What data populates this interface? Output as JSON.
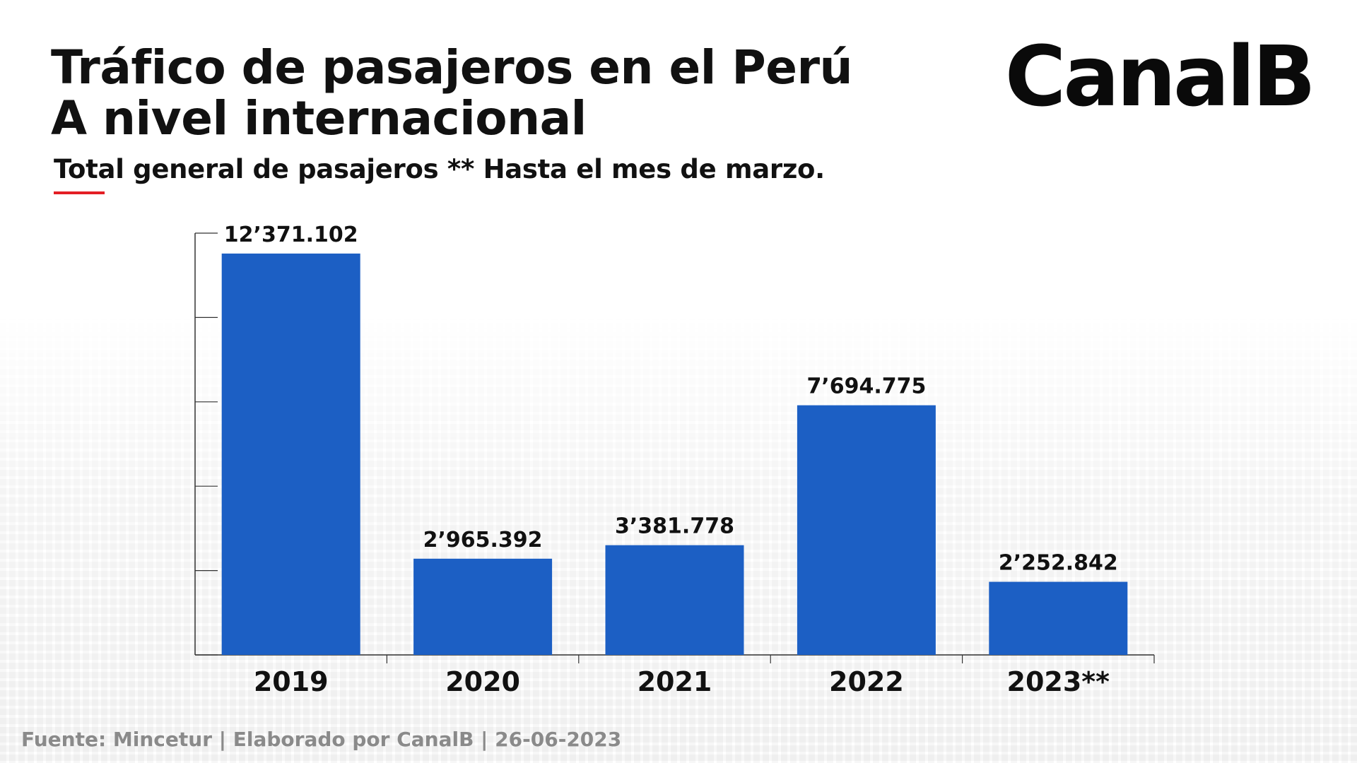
{
  "header": {
    "title_line1": "Tráfico de pasajeros en el Perú",
    "title_line2": "A nivel internacional",
    "subtitle": "Total general de pasajeros ** Hasta el mes de marzo.",
    "logo": "CanalB"
  },
  "footer": {
    "source": "Fuente: Mincetur | Elaborado por CanalB | 26-06-2023"
  },
  "colors": {
    "bar": "#1c5fc4",
    "accent": "#e31e24",
    "axis": "#333333"
  },
  "chart_data": {
    "type": "bar",
    "categories": [
      "2019",
      "2020",
      "2021",
      "2022",
      "2023**"
    ],
    "values": [
      12371102,
      2965392,
      3381778,
      7694775,
      2252842
    ],
    "value_labels": [
      "12’371.102",
      "2’965.392",
      "3’381.778",
      "7’694.775",
      "2’252.842"
    ],
    "title": "Tráfico de pasajeros en el Perú",
    "subtitle": "Total general de pasajeros ** Hasta el mes de marzo.",
    "xlabel": "",
    "ylabel": "",
    "ylim": [
      0,
      13000000
    ],
    "grid": false,
    "legend": "none"
  }
}
